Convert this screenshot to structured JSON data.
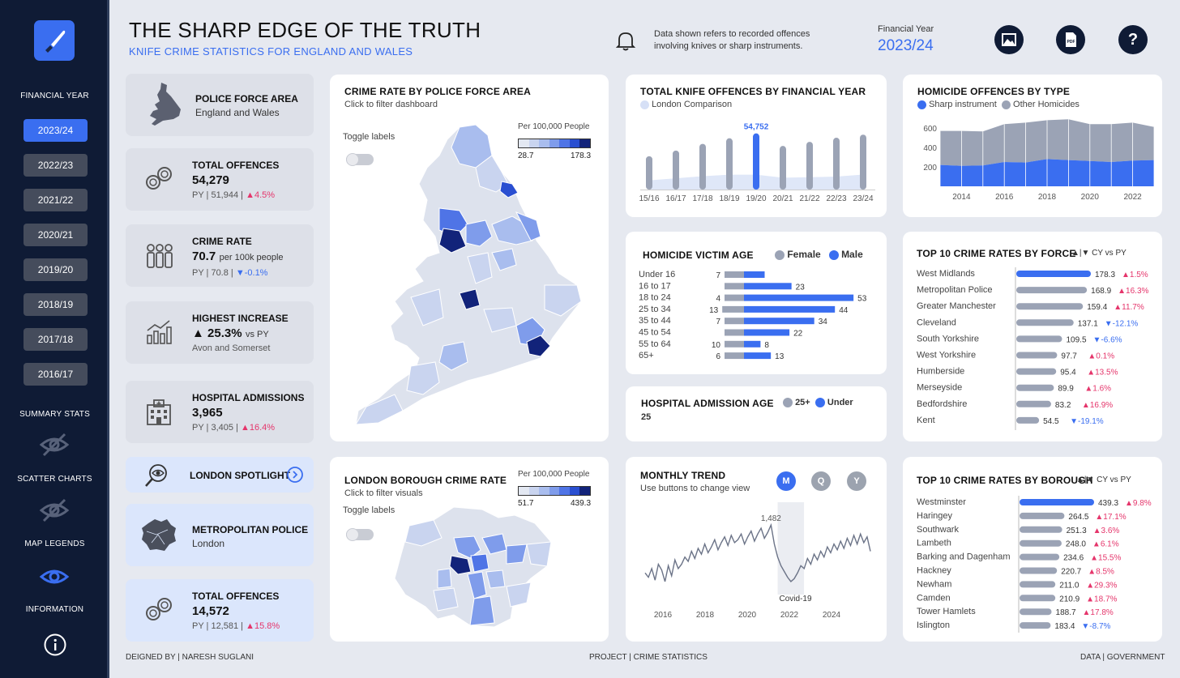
{
  "header": {
    "title": "THE SHARP EDGE OF THE TRUTH",
    "subtitle": "KNIFE CRIME STATISTICS FOR ENGLAND AND WALES",
    "note": "Data shown refers to recorded offences involving knives or sharp instruments.",
    "fy_label": "Financial Year",
    "fy_value": "2023/24"
  },
  "sidebar": {
    "financial_year_label": "FINANCIAL YEAR",
    "years": [
      "2023/24",
      "2022/23",
      "2021/22",
      "2020/21",
      "2019/20",
      "2018/19",
      "2017/18",
      "2016/17"
    ],
    "summary_stats": "SUMMARY STATS",
    "scatter_charts": "SCATTER CHARTS",
    "map_legends": "MAP LEGENDS",
    "information": "INFORMATION"
  },
  "kpis": {
    "police_force": {
      "title": "POLICE FORCE AREA",
      "value": "England and Wales"
    },
    "total_offences": {
      "title": "TOTAL OFFENCES",
      "value": "54,279",
      "py": "PY  |  51,944  |",
      "change": "▲4.5%"
    },
    "crime_rate": {
      "title": "CRIME RATE",
      "value": "70.7",
      "unit": "per 100k people",
      "py": "PY  |  70.8  |",
      "change": "▼-0.1%"
    },
    "highest_increase": {
      "title": "HIGHEST INCREASE",
      "value": "▲ 25.3%",
      "unit": "vs PY",
      "area": "Avon and Somerset"
    },
    "hospital": {
      "title": "HOSPITAL ADMISSIONS",
      "value": "3,965",
      "py": "PY  |  3,405  |",
      "change": "▲16.4%"
    },
    "london_spotlight": "LONDON SPOTLIGHT",
    "met_police": {
      "title": "METROPOLITAN POLICE",
      "value": "London"
    },
    "london_total": {
      "title": "TOTAL OFFENCES",
      "value": "14,572",
      "py": "PY  |  12,581  |",
      "change": "▲15.8%"
    }
  },
  "map_force": {
    "title": "CRIME RATE  BY  POLICE FORCE AREA",
    "subtitle": "Click to filter dashboard",
    "toggle": "Toggle labels",
    "legend_title": "Per 100,000 People",
    "legend_min": "28.7",
    "legend_max": "178.3"
  },
  "map_borough": {
    "title": "LONDON BOROUGH CRIME RATE",
    "subtitle": "Click to filter visuals",
    "toggle": "Toggle labels",
    "legend_title": "Per 100,000 People",
    "legend_min": "51.7",
    "legend_max": "439.3"
  },
  "colors": {
    "accent": "#3a6ef0",
    "grey": "#9ba3b5",
    "navy": "#0f1b35",
    "pink": "#e5356b"
  },
  "chart_data": [
    {
      "id": "total_offences_by_fy",
      "type": "bar",
      "title": "TOTAL KNIFE OFFENCES BY FINANCIAL YEAR",
      "legend": "London Comparison",
      "categories": [
        "15/16",
        "16/17",
        "17/18",
        "18/19",
        "19/20",
        "20/21",
        "21/22",
        "22/23",
        "23/24"
      ],
      "values": [
        32500,
        38000,
        44500,
        50000,
        54752,
        42500,
        46500,
        50500,
        53500
      ],
      "highlight_label": "54,752",
      "highlight_index": 4,
      "london_values": [
        9000,
        11000,
        13000,
        14500,
        14500,
        11500,
        12000,
        12600,
        14572
      ],
      "ylim": [
        0,
        60000
      ]
    },
    {
      "id": "homicide_by_type",
      "type": "area",
      "title": "HOMICIDE OFFENCES BY TYPE",
      "x": [
        2013,
        2014,
        2015,
        2016,
        2017,
        2018,
        2019,
        2020,
        2021,
        2022,
        2023
      ],
      "xticks": [
        "2014",
        "2016",
        "2018",
        "2020",
        "2022"
      ],
      "series": [
        {
          "name": "Sharp instrument",
          "values": [
            220,
            210,
            215,
            250,
            245,
            280,
            270,
            260,
            250,
            265,
            270
          ]
        },
        {
          "name": "Other Homicides",
          "values": [
            350,
            360,
            350,
            390,
            410,
            400,
            420,
            380,
            390,
            390,
            340
          ]
        }
      ],
      "yticks": [
        "200",
        "400",
        "600"
      ],
      "ylim": [
        0,
        700
      ]
    },
    {
      "id": "homicide_victim_age",
      "type": "bar",
      "title": "HOMICIDE VICTIM AGE",
      "categories": [
        "Under 16",
        "16 to 17",
        "18 to 24",
        "25 to 34",
        "35 to 44",
        "45 to 54",
        "55 to 64",
        "65+"
      ],
      "series": [
        {
          "name": "Female",
          "values": [
            7,
            0,
            4,
            13,
            7,
            0,
            10,
            6
          ]
        },
        {
          "name": "Male",
          "values": [
            10,
            23,
            53,
            44,
            34,
            22,
            8,
            13
          ]
        }
      ],
      "female_labels": [
        "7",
        "",
        "4",
        "13",
        "7",
        "",
        "10",
        "6"
      ],
      "male_labels": [
        "",
        "23",
        "53",
        "44",
        "34",
        "22",
        "8",
        "13"
      ]
    },
    {
      "id": "hospital_admission_age",
      "type": "bar",
      "title": "HOSPITAL ADMISSION AGE",
      "legend": [
        "25+",
        "Under"
      ],
      "extra": "25"
    },
    {
      "id": "monthly_trend",
      "type": "line",
      "title": "MONTHLY TREND",
      "subtitle": "Use buttons to change view",
      "buttons": [
        "M",
        "Q",
        "Y"
      ],
      "peak_label": "1,482",
      "covid_label": "Covid-19",
      "xticks": [
        "2016",
        "2018",
        "2020",
        "2022",
        "2024"
      ],
      "values": [
        1150,
        1120,
        1180,
        1100,
        1210,
        1170,
        1090,
        1200,
        1130,
        1240,
        1180,
        1210,
        1260,
        1230,
        1300,
        1250,
        1320,
        1280,
        1350,
        1290,
        1330,
        1380,
        1310,
        1360,
        1400,
        1340,
        1410,
        1360,
        1380,
        1420,
        1350,
        1400,
        1440,
        1370,
        1420,
        1460,
        1390,
        1430,
        1482,
        1350,
        1260,
        1200,
        1160,
        1120,
        1090,
        1110,
        1150,
        1200,
        1180,
        1250,
        1210,
        1280,
        1240,
        1300,
        1260,
        1330,
        1290,
        1350,
        1310,
        1370,
        1320,
        1390,
        1340,
        1410,
        1350,
        1420,
        1360,
        1400,
        1300
      ],
      "ylim": [
        1000,
        1550
      ]
    },
    {
      "id": "top10_force",
      "type": "bar",
      "title": "TOP 10 CRIME RATES BY FORCE",
      "legend": "▲|▼  CY vs PY",
      "categories": [
        "West Midlands",
        "Metropolitan Police",
        "Greater Manchester",
        "Cleveland",
        "South Yorkshire",
        "West Yorkshire",
        "Humberside",
        "Merseyside",
        "Bedfordshire",
        "Kent"
      ],
      "values": [
        178.3,
        168.9,
        159.4,
        137.1,
        109.5,
        97.7,
        95.4,
        89.9,
        83.2,
        54.5
      ],
      "value_labels": [
        "178.3",
        "168.9",
        "159.4",
        "137.1",
        "109.5",
        "97.7",
        "95.4",
        "89.9",
        "83.2",
        "54.5"
      ],
      "changes": [
        "▲1.5%",
        "▲16.3%",
        "▲11.7%",
        "▼-12.1%",
        "▼-6.6%",
        "▲0.1%",
        "▲13.5%",
        "▲1.6%",
        "▲16.9%",
        "▼-19.1%"
      ],
      "xlim": [
        0,
        200
      ]
    },
    {
      "id": "top10_borough",
      "type": "bar",
      "title": "TOP 10 CRIME RATES BY BOROUGH",
      "legend": "▲|▼  CY vs PY",
      "categories": [
        "Westminster",
        "Haringey",
        "Southwark",
        "Lambeth",
        "Barking and Dagenham",
        "Hackney",
        "Newham",
        "Camden",
        "Tower Hamlets",
        "Islington"
      ],
      "values": [
        439.3,
        264.5,
        251.3,
        248.0,
        234.6,
        220.7,
        211.0,
        210.9,
        188.7,
        183.4
      ],
      "value_labels": [
        "439.3",
        "264.5",
        "251.3",
        "248.0",
        "234.6",
        "220.7",
        "211.0",
        "210.9",
        "188.7",
        "183.4"
      ],
      "changes": [
        "▲9.8%",
        "▲17.1%",
        "▲3.6%",
        "▲6.1%",
        "▲15.5%",
        "▲8.5%",
        "▲29.3%",
        "▲18.7%",
        "▲17.8%",
        "▼-8.7%"
      ],
      "xlim": [
        0,
        450
      ]
    }
  ],
  "footer": {
    "designed": "DEIGNED BY  |  NARESH SUGLANI",
    "project": "PROJECT  |  CRIME STATISTICS",
    "data": "DATA  |  GOVERNMENT"
  }
}
